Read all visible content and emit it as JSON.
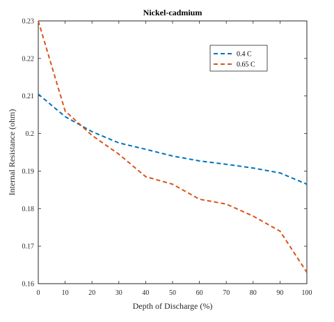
{
  "chart_data": {
    "type": "line",
    "title": "Nickel-cadmium",
    "xlabel": "Depth of Discharge (%)",
    "ylabel": "Internal Resistance (ohm)",
    "xlim": [
      0,
      100
    ],
    "ylim": [
      0.16,
      0.23
    ],
    "xticks": [
      0,
      10,
      20,
      30,
      40,
      50,
      60,
      70,
      80,
      90,
      100
    ],
    "yticks": [
      0.16,
      0.17,
      0.18,
      0.19,
      0.2,
      0.21,
      0.22,
      0.23
    ],
    "ytick_labels": [
      "0.16",
      "0.17",
      "0.18",
      "0.19",
      "0.2",
      "0.21",
      "0.22",
      "0.23"
    ],
    "grid": false,
    "legend_position": "top-right",
    "line_style": "dashed",
    "series": [
      {
        "name": "0.4 C",
        "color": "#0072BD",
        "x": [
          0,
          10,
          20,
          30,
          40,
          50,
          60,
          70,
          80,
          90,
          100
        ],
        "values": [
          0.2105,
          0.2045,
          0.2005,
          0.1975,
          0.1958,
          0.194,
          0.1927,
          0.1918,
          0.1908,
          0.1895,
          0.1865
        ]
      },
      {
        "name": "0.65 C",
        "color": "#D95319",
        "x": [
          0,
          10,
          20,
          30,
          40,
          50,
          60,
          70,
          80,
          90,
          100
        ],
        "values": [
          0.23,
          0.206,
          0.1995,
          0.1945,
          0.1885,
          0.1865,
          0.1825,
          0.1812,
          0.178,
          0.174,
          0.163
        ]
      }
    ]
  }
}
